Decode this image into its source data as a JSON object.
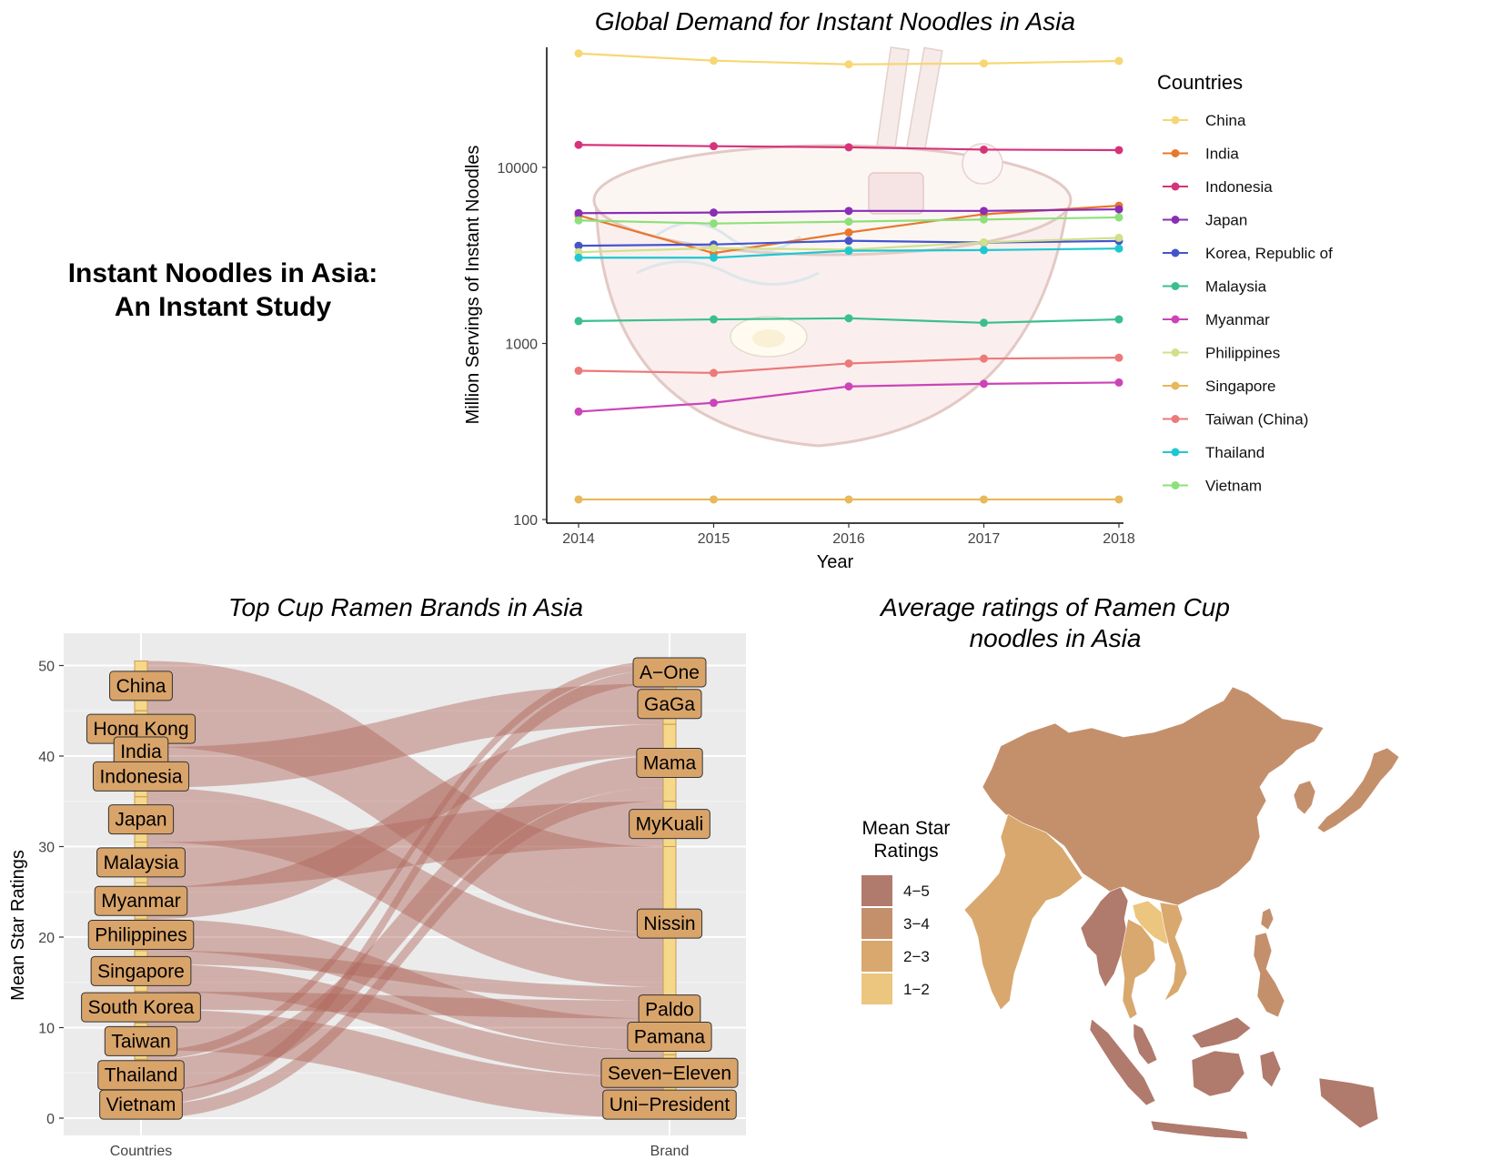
{
  "page_title_line1": "Instant Noodles in Asia:",
  "page_title_line2": "An Instant Study",
  "chart_data": [
    {
      "type": "line",
      "title": "Global Demand for Instant Noodles in Asia",
      "xlabel": "Year",
      "ylabel": "Million Servings of Instant Noodles",
      "y_scale": "log10",
      "ylim": [
        100,
        50000
      ],
      "y_ticks": [
        100,
        1000,
        10000
      ],
      "y_tick_labels": [
        "100",
        "1000",
        "10000"
      ],
      "x": [
        2014,
        2015,
        2016,
        2017,
        2018
      ],
      "x_tick_labels": [
        "2014",
        "2015",
        "2016",
        "2017",
        "2018"
      ],
      "legend_title": "Countries",
      "legend_position": "right",
      "grid": false,
      "series": [
        {
          "name": "China",
          "color": "#f7d774",
          "values": [
            44400,
            40400,
            38500,
            38960,
            40250
          ]
        },
        {
          "name": "India",
          "color": "#e8772e",
          "values": [
            5340,
            3260,
            4270,
            5420,
            6060
          ]
        },
        {
          "name": "Indonesia",
          "color": "#d6337a",
          "values": [
            13430,
            13200,
            13010,
            12620,
            12540
          ]
        },
        {
          "name": "Japan",
          "color": "#8a2fb5",
          "values": [
            5500,
            5540,
            5660,
            5660,
            5780
          ]
        },
        {
          "name": "Korea, Republic of",
          "color": "#4455cc",
          "values": [
            3590,
            3650,
            3830,
            3740,
            3820
          ]
        },
        {
          "name": "Malaysia",
          "color": "#3bbf8f",
          "values": [
            1340,
            1370,
            1390,
            1310,
            1370
          ]
        },
        {
          "name": "Myanmar",
          "color": "#cc44b8",
          "values": [
            410,
            460,
            570,
            590,
            600
          ]
        },
        {
          "name": "Philippines",
          "color": "#d1e08a",
          "values": [
            3300,
            3480,
            3410,
            3750,
            3980
          ]
        },
        {
          "name": "Singapore",
          "color": "#e8b85a",
          "values": [
            130,
            130,
            130,
            130,
            130
          ]
        },
        {
          "name": "Taiwan (China)",
          "color": "#ec7a7a",
          "values": [
            700,
            680,
            770,
            820,
            830
          ]
        },
        {
          "name": "Thailand",
          "color": "#1ec8d0",
          "values": [
            3070,
            3070,
            3360,
            3390,
            3460
          ]
        },
        {
          "name": "Vietnam",
          "color": "#8ee07a",
          "values": [
            5000,
            4800,
            4920,
            5060,
            5200
          ]
        }
      ]
    },
    {
      "type": "sankey",
      "title": "Top Cup Ramen Brands in Asia",
      "ylabel": "Mean Star Ratings",
      "ylim": [
        0,
        50
      ],
      "y_ticks": [
        0,
        10,
        20,
        30,
        40,
        50
      ],
      "y_tick_labels": [
        "0",
        "10",
        "20",
        "30",
        "40",
        "50"
      ],
      "axis_labels": [
        "Countries",
        "Brand"
      ],
      "grid": true,
      "flow_color": "#b0675c",
      "node_color": "#f5d88a",
      "label_color": "#d9a46a",
      "countries": [
        {
          "name": "China",
          "bottom": 45.0,
          "top": 50.5
        },
        {
          "name": "Hong Kong",
          "bottom": 41.0,
          "top": 45.0
        },
        {
          "name": "India",
          "bottom": 40.0,
          "top": 41.0
        },
        {
          "name": "Indonesia",
          "bottom": 35.5,
          "top": 40.0
        },
        {
          "name": "Japan",
          "bottom": 30.5,
          "top": 35.5
        },
        {
          "name": "Malaysia",
          "bottom": 26.0,
          "top": 30.5
        },
        {
          "name": "Myanmar",
          "bottom": 22.0,
          "top": 26.0
        },
        {
          "name": "Philippines",
          "bottom": 18.5,
          "top": 22.0
        },
        {
          "name": "Singapore",
          "bottom": 14.0,
          "top": 18.5
        },
        {
          "name": "South Korea",
          "bottom": 10.5,
          "top": 14.0
        },
        {
          "name": "Taiwan",
          "bottom": 6.5,
          "top": 10.5
        },
        {
          "name": "Thailand",
          "bottom": 3.0,
          "top": 6.5
        },
        {
          "name": "Vietnam",
          "bottom": 0.0,
          "top": 3.0
        }
      ],
      "brands": [
        {
          "name": "A−One",
          "bottom": 48.0,
          "top": 50.5
        },
        {
          "name": "GaGa",
          "bottom": 43.5,
          "top": 48.0
        },
        {
          "name": "Mama",
          "bottom": 35.0,
          "top": 43.5
        },
        {
          "name": "MyKuali",
          "bottom": 30.0,
          "top": 35.0
        },
        {
          "name": "Nissin",
          "bottom": 13.0,
          "top": 30.0
        },
        {
          "name": "Paldo",
          "bottom": 11.0,
          "top": 13.0
        },
        {
          "name": "Pamana",
          "bottom": 7.0,
          "top": 11.0
        },
        {
          "name": "Seven−Eleven",
          "bottom": 3.0,
          "top": 7.0
        },
        {
          "name": "Uni−President",
          "bottom": 0.0,
          "top": 3.0
        }
      ],
      "flows": [
        {
          "from": "China",
          "to": "Nissin",
          "value": 5.5
        },
        {
          "from": "Hong Kong",
          "to": "Nissin",
          "value": 4.0
        },
        {
          "from": "India",
          "to": "GaGa",
          "value": 1.0
        },
        {
          "from": "Indonesia",
          "to": "GaGa",
          "value": 3.5
        },
        {
          "from": "Indonesia",
          "to": "Nissin",
          "value": 1.0
        },
        {
          "from": "Japan",
          "to": "Nissin",
          "value": 5.0
        },
        {
          "from": "Malaysia",
          "to": "MyKuali",
          "value": 4.5
        },
        {
          "from": "Myanmar",
          "to": "MyKuali",
          "value": 0.5
        },
        {
          "from": "Myanmar",
          "to": "Mama",
          "value": 3.5
        },
        {
          "from": "Philippines",
          "to": "Pamana",
          "value": 3.5
        },
        {
          "from": "Singapore",
          "to": "Nissin",
          "value": 1.5
        },
        {
          "from": "Singapore",
          "to": "Pamana",
          "value": 0.5
        },
        {
          "from": "Singapore",
          "to": "Seven−Eleven",
          "value": 2.5
        },
        {
          "from": "South Korea",
          "to": "Paldo",
          "value": 2.0
        },
        {
          "from": "South Korea",
          "to": "Seven−Eleven",
          "value": 1.5
        },
        {
          "from": "Taiwan",
          "to": "Uni−President",
          "value": 3.0
        },
        {
          "from": "Taiwan",
          "to": "A−One",
          "value": 1.0
        },
        {
          "from": "Thailand",
          "to": "Mama",
          "value": 3.5
        },
        {
          "from": "Vietnam",
          "to": "A−One",
          "value": 1.5
        },
        {
          "from": "Vietnam",
          "to": "Mama",
          "value": 1.5
        }
      ]
    },
    {
      "type": "choropleth",
      "title_line1": "Average ratings of Ramen Cup",
      "title_line2": "noodles in Asia",
      "legend_title_line1": "Mean Star",
      "legend_title_line2": "Ratings",
      "legend_position": "left",
      "legend": [
        {
          "label": "4−5",
          "color": "#b07a6c"
        },
        {
          "label": "3−4",
          "color": "#c4906c"
        },
        {
          "label": "2−3",
          "color": "#d9a86e"
        },
        {
          "label": "1−2",
          "color": "#ecc57e"
        }
      ],
      "regions": [
        {
          "region": "China",
          "class": "3−4"
        },
        {
          "region": "Japan",
          "class": "3−4"
        },
        {
          "region": "Korea",
          "class": "3−4"
        },
        {
          "region": "Taiwan",
          "class": "3−4"
        },
        {
          "region": "India",
          "class": "2−3"
        },
        {
          "region": "Myanmar",
          "class": "4−5"
        },
        {
          "region": "Thailand",
          "class": "2−3"
        },
        {
          "region": "Vietnam",
          "class": "2−3"
        },
        {
          "region": "Laos",
          "class": "1−2"
        },
        {
          "region": "Philippines",
          "class": "3−4"
        },
        {
          "region": "Malaysia",
          "class": "4−5"
        },
        {
          "region": "Indonesia",
          "class": "4−5"
        }
      ]
    }
  ]
}
